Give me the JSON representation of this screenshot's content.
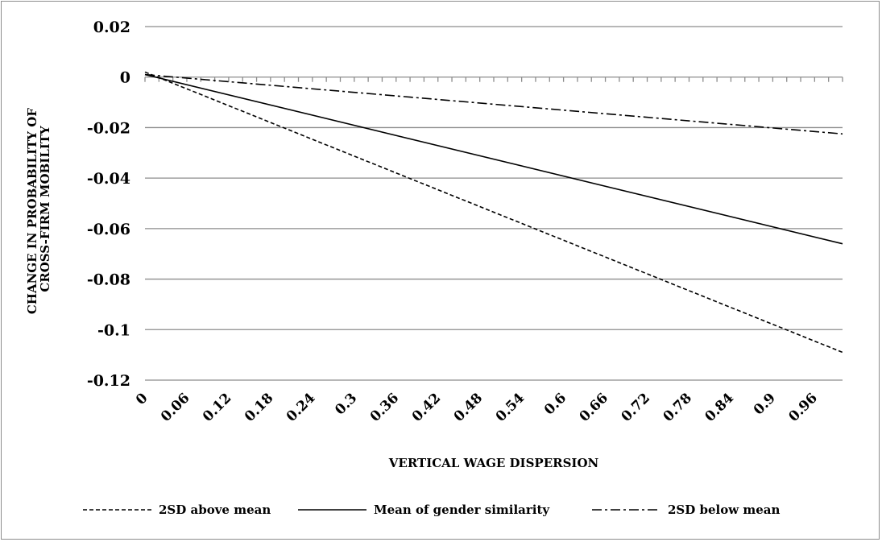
{
  "chart_data": {
    "type": "line",
    "title": "",
    "xlabel": "VERTICAL WAGE DISPERSION",
    "ylabel": [
      "CHANGE IN PROBABILITY OF",
      "CROSS-FIRM MOBILITY"
    ],
    "xlim": [
      0,
      1
    ],
    "ylim": [
      -0.12,
      0.02
    ],
    "y_ticks": [
      0.02,
      0,
      -0.02,
      -0.04,
      -0.06,
      -0.08,
      -0.1,
      -0.12
    ],
    "y_tick_labels": [
      "0.02",
      "0",
      "-0.02",
      "-0.04",
      "-0.06",
      "-0.08",
      "-0.1",
      "-0.12"
    ],
    "x_tick_labels": [
      "0",
      "0.06",
      "0.12",
      "0.18",
      "0.24",
      "0.3",
      "0.36",
      "0.42",
      "0.48",
      "0.54",
      "0.6",
      "0.66",
      "0.72",
      "0.78",
      "0.84",
      "0.9",
      "0.96"
    ],
    "grid": "horizontal",
    "legend_position": "bottom",
    "colors": {
      "lines": "#000000",
      "grid": "#8c8c8c",
      "frame": "#8c8c8c"
    },
    "series": [
      {
        "name": "2SD above mean",
        "dash": "dashed",
        "x": [
          0,
          1
        ],
        "y": [
          0.002,
          -0.109
        ]
      },
      {
        "name": "Mean of gender similarity",
        "dash": "solid",
        "x": [
          0,
          1
        ],
        "y": [
          0.001,
          -0.066
        ]
      },
      {
        "name": "2SD below mean",
        "dash": "dashdot",
        "x": [
          0,
          1
        ],
        "y": [
          0.001,
          -0.0225
        ]
      }
    ]
  }
}
